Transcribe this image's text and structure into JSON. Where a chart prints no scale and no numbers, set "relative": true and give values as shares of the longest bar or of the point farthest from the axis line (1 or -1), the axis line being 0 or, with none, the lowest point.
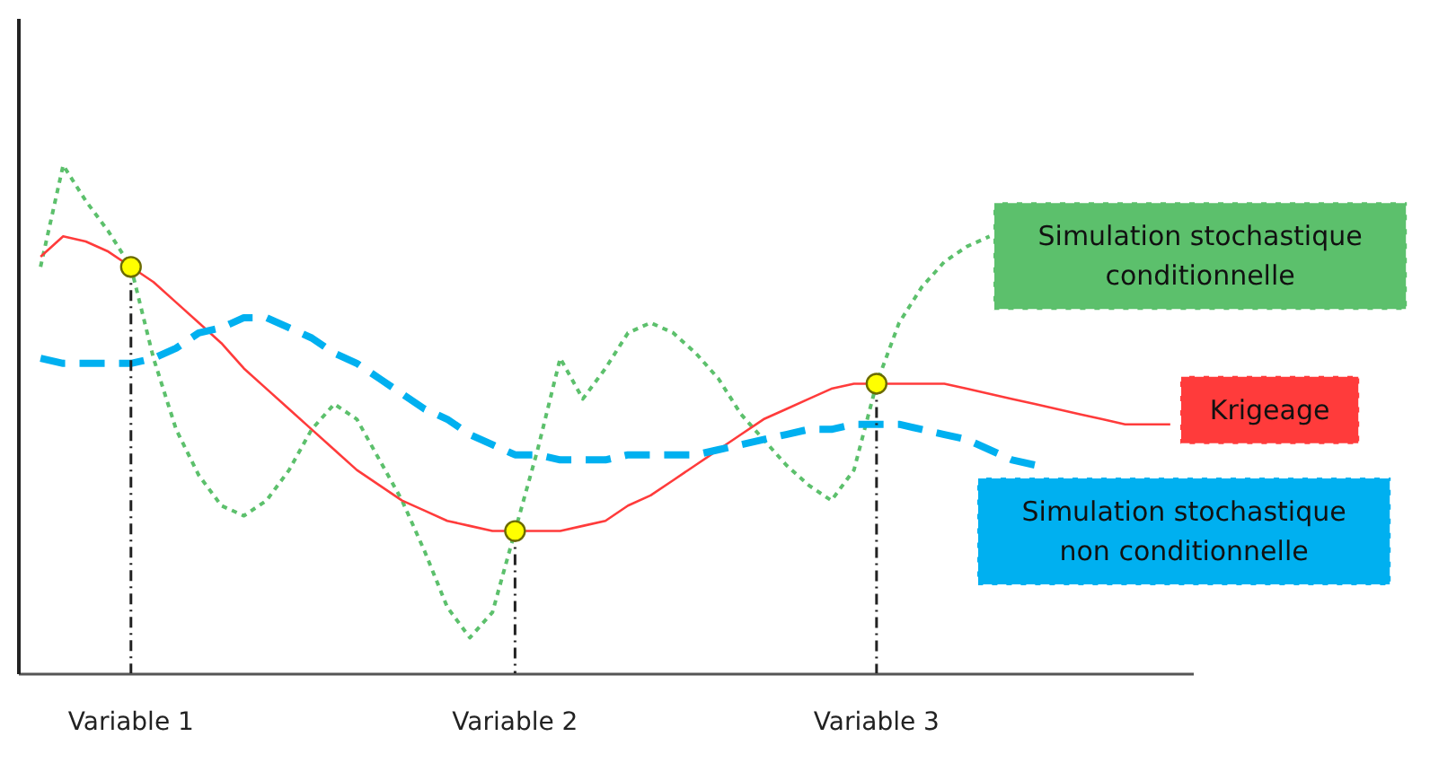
{
  "chart_data": {
    "type": "line",
    "relative": true,
    "legend": false,
    "categories": [
      null,
      null,
      null,
      null,
      "Variable 1",
      null,
      null,
      null,
      null,
      null,
      null,
      null,
      null,
      null,
      null,
      null,
      null,
      null,
      null,
      null,
      null,
      "Variable 2",
      null,
      null,
      null,
      null,
      null,
      null,
      null,
      null,
      null,
      null,
      null,
      null,
      null,
      null,
      null,
      "Variable 3",
      null,
      null,
      null,
      null,
      null,
      null,
      null,
      null,
      null,
      null,
      null,
      null,
      null
    ],
    "series": [
      {
        "name": "Simulation stochastique conditionnelle",
        "color": "#5cc06c",
        "line_style": "dotted",
        "values": [
          0.8,
          1.0,
          0.93,
          0.87,
          0.8,
          0.62,
          0.48,
          0.39,
          0.33,
          0.31,
          0.34,
          0.4,
          0.48,
          0.53,
          0.5,
          0.42,
          0.34,
          0.24,
          0.13,
          0.07,
          0.12,
          0.28,
          0.44,
          0.62,
          0.54,
          0.6,
          0.67,
          0.69,
          0.67,
          0.63,
          0.58,
          0.51,
          0.46,
          0.41,
          0.37,
          0.34,
          0.4,
          0.57,
          0.69,
          0.76,
          0.81,
          0.84,
          0.86,
          null,
          null,
          null,
          null,
          null,
          null,
          null,
          null
        ]
      },
      {
        "name": "Krigeage",
        "color": "#ff3b3b",
        "line_style": "solid",
        "values": [
          0.82,
          0.86,
          0.85,
          0.83,
          0.8,
          0.77,
          0.73,
          0.69,
          0.65,
          0.6,
          0.56,
          0.52,
          0.48,
          0.44,
          0.4,
          0.37,
          0.34,
          0.32,
          0.3,
          0.29,
          0.28,
          0.28,
          0.28,
          0.28,
          0.29,
          0.3,
          0.33,
          0.35,
          0.38,
          0.41,
          0.44,
          0.47,
          0.5,
          0.52,
          0.54,
          0.56,
          0.57,
          0.57,
          0.57,
          0.57,
          0.57,
          0.56,
          0.55,
          0.54,
          0.53,
          0.52,
          0.51,
          0.5,
          0.49,
          0.49,
          0.49
        ]
      },
      {
        "name": "Simulation stochastique non conditionnelle",
        "color": "#00b0f0",
        "line_style": "dashed",
        "values": [
          0.62,
          0.61,
          0.61,
          0.61,
          0.61,
          0.62,
          0.64,
          0.67,
          0.68,
          0.7,
          0.7,
          0.68,
          0.66,
          0.63,
          0.61,
          0.58,
          0.55,
          0.52,
          0.5,
          0.47,
          0.45,
          0.43,
          0.43,
          0.42,
          0.42,
          0.42,
          0.43,
          0.43,
          0.43,
          0.43,
          0.44,
          0.45,
          0.46,
          0.47,
          0.48,
          0.48,
          0.49,
          0.49,
          0.49,
          0.48,
          0.47,
          0.46,
          0.44,
          0.42,
          0.41,
          null,
          null,
          null,
          null,
          null,
          null
        ]
      },
      {
        "type": "lollipop",
        "color": "#ffff00",
        "marker": "circle",
        "x": [
          "Variable 1",
          "Variable 2",
          "Variable 3"
        ],
        "values": [
          0.8,
          0.28,
          0.57
        ]
      }
    ]
  }
}
